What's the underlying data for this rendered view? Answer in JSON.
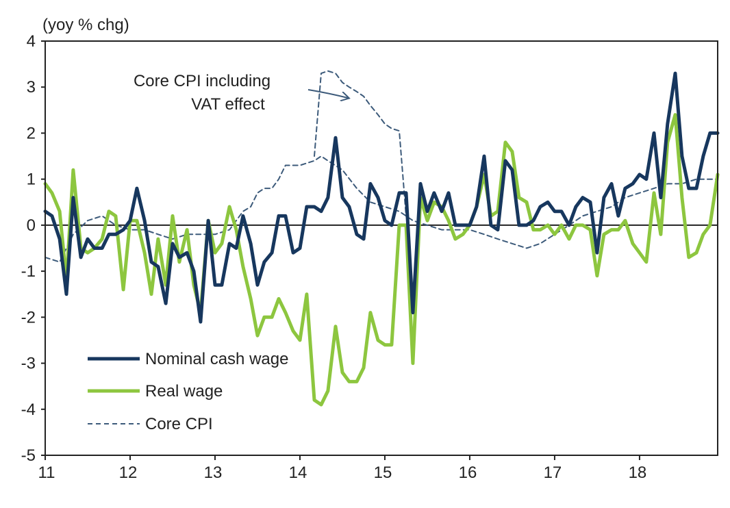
{
  "chart_data": {
    "type": "line",
    "unit_label": "(yoy % chg)",
    "ylim": [
      -5,
      4
    ],
    "y_ticks": [
      4,
      3,
      2,
      1,
      0,
      -1,
      -2,
      -3,
      -4,
      -5
    ],
    "xlim": [
      11,
      18.92
    ],
    "x_tick_labels": [
      "11",
      "12",
      "13",
      "14",
      "15",
      "16",
      "17",
      "18"
    ],
    "grid": false,
    "legend_position": "bottom-left",
    "annotation": {
      "lines": [
        "Core CPI including",
        "VAT effect"
      ]
    },
    "colors": {
      "nominal": "#17375e",
      "real": "#8dc63f",
      "core": "#3c5a7a",
      "axis": "#222222"
    },
    "series": [
      {
        "name": "Nominal cash wage",
        "x": [
          11.0,
          11.08,
          11.17,
          11.25,
          11.33,
          11.42,
          11.5,
          11.58,
          11.67,
          11.75,
          11.83,
          11.92,
          12.0,
          12.08,
          12.17,
          12.25,
          12.33,
          12.42,
          12.5,
          12.58,
          12.67,
          12.75,
          12.83,
          12.92,
          13.0,
          13.08,
          13.17,
          13.25,
          13.33,
          13.42,
          13.5,
          13.58,
          13.67,
          13.75,
          13.83,
          13.92,
          14.0,
          14.08,
          14.17,
          14.25,
          14.33,
          14.42,
          14.5,
          14.58,
          14.67,
          14.75,
          14.83,
          14.92,
          15.0,
          15.08,
          15.17,
          15.25,
          15.33,
          15.42,
          15.5,
          15.58,
          15.67,
          15.75,
          15.83,
          15.92,
          16.0,
          16.08,
          16.17,
          16.25,
          16.33,
          16.42,
          16.5,
          16.58,
          16.67,
          16.75,
          16.83,
          16.92,
          17.0,
          17.08,
          17.17,
          17.25,
          17.33,
          17.42,
          17.5,
          17.58,
          17.67,
          17.75,
          17.83,
          17.92,
          18.0,
          18.08,
          18.17,
          18.25,
          18.33,
          18.42,
          18.5,
          18.58,
          18.67,
          18.75,
          18.83,
          18.92
        ],
        "values": [
          0.3,
          0.2,
          -0.3,
          -1.5,
          0.6,
          -0.7,
          -0.3,
          -0.5,
          -0.5,
          -0.2,
          -0.2,
          -0.1,
          0.1,
          0.8,
          0.1,
          -0.8,
          -0.9,
          -1.7,
          -0.4,
          -0.7,
          -0.6,
          -1.0,
          -2.1,
          0.1,
          -1.3,
          -1.3,
          -0.4,
          -0.5,
          0.2,
          -0.4,
          -1.3,
          -0.8,
          -0.6,
          0.2,
          0.2,
          -0.6,
          -0.5,
          0.4,
          0.4,
          0.3,
          0.6,
          1.9,
          0.6,
          0.4,
          -0.2,
          -0.3,
          0.9,
          0.6,
          0.1,
          0.0,
          0.7,
          0.7,
          -1.9,
          0.9,
          0.3,
          0.7,
          0.3,
          0.7,
          0.0,
          0.0,
          0.0,
          0.4,
          1.5,
          0.0,
          -0.1,
          1.4,
          1.2,
          0.0,
          0.0,
          0.1,
          0.4,
          0.5,
          0.3,
          0.3,
          0.0,
          0.4,
          0.6,
          0.5,
          -0.6,
          0.6,
          0.9,
          0.2,
          0.8,
          0.9,
          1.1,
          1.0,
          2.0,
          0.6,
          2.2,
          3.3,
          1.5,
          0.8,
          0.8,
          1.5,
          2.0,
          2.0
        ]
      },
      {
        "name": "Real wage",
        "x": [
          11.0,
          11.08,
          11.17,
          11.25,
          11.33,
          11.42,
          11.5,
          11.58,
          11.67,
          11.75,
          11.83,
          11.92,
          12.0,
          12.08,
          12.17,
          12.25,
          12.33,
          12.42,
          12.5,
          12.58,
          12.67,
          12.75,
          12.83,
          12.92,
          13.0,
          13.08,
          13.17,
          13.25,
          13.33,
          13.42,
          13.5,
          13.58,
          13.67,
          13.75,
          13.83,
          13.92,
          14.0,
          14.08,
          14.17,
          14.25,
          14.33,
          14.42,
          14.5,
          14.58,
          14.67,
          14.75,
          14.83,
          14.92,
          15.0,
          15.08,
          15.17,
          15.25,
          15.33,
          15.42,
          15.5,
          15.58,
          15.67,
          15.75,
          15.83,
          15.92,
          16.0,
          16.08,
          16.17,
          16.25,
          16.33,
          16.42,
          16.5,
          16.58,
          16.67,
          16.75,
          16.83,
          16.92,
          17.0,
          17.08,
          17.17,
          17.25,
          17.33,
          17.42,
          17.5,
          17.58,
          17.67,
          17.75,
          17.83,
          17.92,
          18.0,
          18.08,
          18.17,
          18.25,
          18.33,
          18.42,
          18.5,
          18.58,
          18.67,
          18.75,
          18.83,
          18.92
        ],
        "values": [
          0.9,
          0.7,
          0.3,
          -1.2,
          1.2,
          -0.5,
          -0.6,
          -0.5,
          -0.3,
          0.3,
          0.2,
          -1.4,
          0.1,
          0.1,
          -0.6,
          -1.5,
          -0.3,
          -1.3,
          0.2,
          -0.8,
          -0.1,
          -1.3,
          -1.9,
          0.1,
          -0.6,
          -0.4,
          0.4,
          -0.1,
          -0.9,
          -1.6,
          -2.4,
          -2.0,
          -2.0,
          -1.6,
          -1.9,
          -2.3,
          -2.5,
          -1.5,
          -3.8,
          -3.9,
          -3.6,
          -2.2,
          -3.2,
          -3.4,
          -3.4,
          -3.1,
          -1.9,
          -2.5,
          -2.6,
          -2.6,
          0.0,
          0.0,
          -3.0,
          0.6,
          0.1,
          0.5,
          0.4,
          0.1,
          -0.3,
          -0.2,
          0.0,
          0.4,
          1.1,
          0.2,
          0.3,
          1.8,
          1.6,
          0.6,
          0.5,
          -0.1,
          -0.1,
          0.0,
          -0.2,
          0.0,
          -0.3,
          0.0,
          0.0,
          -0.1,
          -1.1,
          -0.2,
          -0.1,
          -0.1,
          0.1,
          -0.4,
          -0.6,
          -0.8,
          0.7,
          -0.2,
          1.8,
          2.4,
          0.6,
          -0.7,
          -0.6,
          -0.2,
          0.0,
          1.1
        ]
      },
      {
        "name": "Core CPI",
        "x": [
          11.0,
          11.17,
          11.33,
          11.5,
          11.67,
          11.83,
          12.0,
          12.17,
          12.33,
          12.5,
          12.67,
          12.83,
          13.0,
          13.17,
          13.33,
          13.42,
          13.5,
          13.58,
          13.67,
          13.75,
          13.83,
          14.0,
          14.17,
          14.25,
          14.33,
          14.5,
          14.67,
          14.83,
          15.0,
          15.17,
          15.25,
          15.33,
          15.5,
          15.67,
          15.83,
          16.0,
          16.17,
          16.33,
          16.5,
          16.67,
          16.83,
          17.0,
          17.17,
          17.33,
          17.5,
          17.67,
          17.83,
          18.0,
          18.17,
          18.33,
          18.5,
          18.67,
          18.92
        ],
        "values": [
          -0.7,
          -0.8,
          -0.2,
          0.1,
          0.2,
          0.0,
          -0.1,
          -0.1,
          -0.2,
          -0.3,
          -0.2,
          -0.2,
          -0.2,
          -0.1,
          0.3,
          0.4,
          0.7,
          0.8,
          0.8,
          1.0,
          1.3,
          1.3,
          1.4,
          1.5,
          1.4,
          1.2,
          0.8,
          0.5,
          0.4,
          0.3,
          0.2,
          0.1,
          0.0,
          -0.1,
          -0.1,
          -0.1,
          -0.2,
          -0.3,
          -0.4,
          -0.5,
          -0.4,
          -0.2,
          0.0,
          0.2,
          0.3,
          0.4,
          0.6,
          0.7,
          0.8,
          0.9,
          0.9,
          1.0,
          1.0
        ]
      },
      {
        "name": "Core CPI including VAT effect",
        "x": [
          14.17,
          14.25,
          14.33,
          14.42,
          14.5,
          14.58,
          14.67,
          14.75,
          14.83,
          14.92,
          15.0,
          15.08,
          15.17,
          15.25
        ],
        "values": [
          1.5,
          3.3,
          3.35,
          3.3,
          3.1,
          3.0,
          2.9,
          2.8,
          2.6,
          2.4,
          2.2,
          2.1,
          2.05,
          0.2
        ]
      }
    ]
  }
}
